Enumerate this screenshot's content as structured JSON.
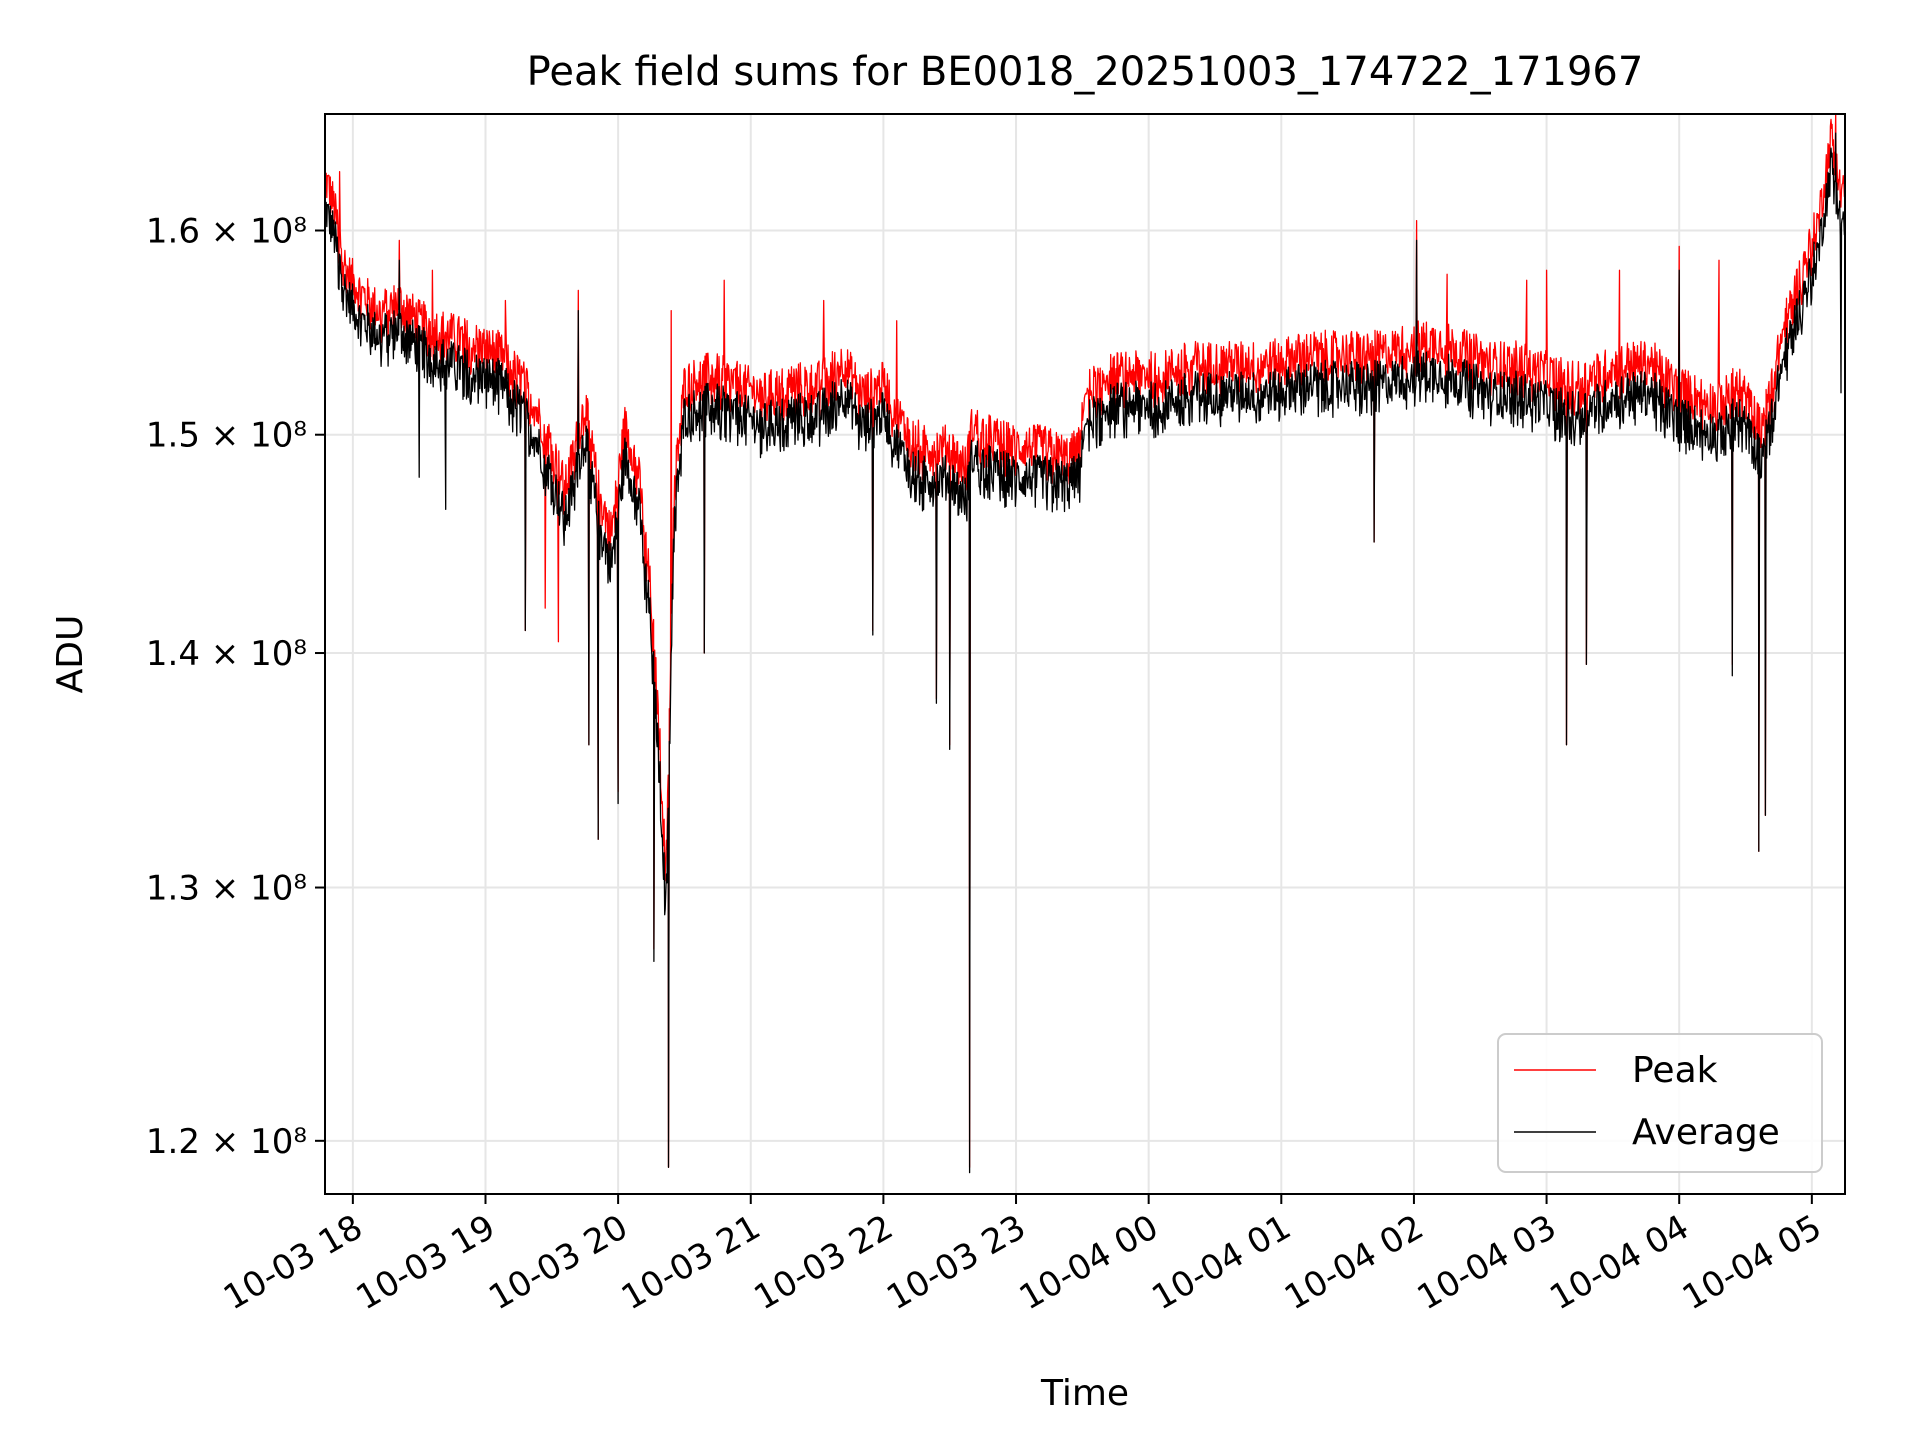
{
  "chart_data": {
    "type": "line",
    "title": "Peak field sums for BE0018_20251003_174722_171967",
    "xlabel": "Time",
    "ylabel": "ADU",
    "x_units": "hours since 2025-10-03 17:00",
    "xlim": [
      0.79,
      12.25
    ],
    "ylim": [
      118000000.0,
      166000000.0
    ],
    "y_scale": "log",
    "grid": true,
    "legend_position": "lower-right",
    "x_ticks": [
      {
        "value": 1,
        "label": "10-03 18"
      },
      {
        "value": 2,
        "label": "10-03 19"
      },
      {
        "value": 3,
        "label": "10-03 20"
      },
      {
        "value": 4,
        "label": "10-03 21"
      },
      {
        "value": 5,
        "label": "10-03 22"
      },
      {
        "value": 6,
        "label": "10-03 23"
      },
      {
        "value": 7,
        "label": "10-04 00"
      },
      {
        "value": 8,
        "label": "10-04 01"
      },
      {
        "value": 9,
        "label": "10-04 02"
      },
      {
        "value": 10,
        "label": "10-04 03"
      },
      {
        "value": 11,
        "label": "10-04 04"
      },
      {
        "value": 12,
        "label": "10-04 05"
      }
    ],
    "y_ticks": [
      {
        "value": 120000000.0,
        "label": "1.2 × 10⁸"
      },
      {
        "value": 130000000.0,
        "label": "1.3 × 10⁸"
      },
      {
        "value": 140000000.0,
        "label": "1.4 × 10⁸"
      },
      {
        "value": 150000000.0,
        "label": "1.5 × 10⁸"
      },
      {
        "value": 160000000.0,
        "label": "1.6 × 10⁸"
      }
    ],
    "series": [
      {
        "name": "Peak",
        "color": "#ff0000",
        "points": [
          [
            0.79,
            162200000.0
          ],
          [
            0.85,
            161000000.0
          ],
          [
            0.95,
            157500000.0
          ],
          [
            1.05,
            156500000.0
          ],
          [
            1.2,
            155500000.0
          ],
          [
            1.35,
            156000000.0
          ],
          [
            1.5,
            155000000.0
          ],
          [
            1.7,
            154500000.0
          ],
          [
            1.9,
            154000000.0
          ],
          [
            2.1,
            153500000.0
          ],
          [
            2.3,
            152000000.0
          ],
          [
            2.5,
            149000000.0
          ],
          [
            2.6,
            147000000.0
          ],
          [
            2.75,
            151000000.0
          ],
          [
            2.85,
            147000000.0
          ],
          [
            2.95,
            145000000.0
          ],
          [
            3.05,
            150000000.0
          ],
          [
            3.15,
            148000000.0
          ],
          [
            3.25,
            142000000.0
          ],
          [
            3.32,
            135000000.0
          ],
          [
            3.36,
            130000000.0
          ],
          [
            3.42,
            147000000.0
          ],
          [
            3.5,
            152000000.0
          ],
          [
            3.7,
            152500000.0
          ],
          [
            3.9,
            152000000.0
          ],
          [
            4.1,
            151500000.0
          ],
          [
            4.3,
            152000000.0
          ],
          [
            4.5,
            152000000.0
          ],
          [
            4.7,
            153000000.0
          ],
          [
            4.85,
            151500000.0
          ],
          [
            5.0,
            152000000.0
          ],
          [
            5.15,
            150000000.0
          ],
          [
            5.3,
            149000000.0
          ],
          [
            5.5,
            149000000.0
          ],
          [
            5.62,
            148000000.0
          ],
          [
            5.67,
            150000000.0
          ],
          [
            5.8,
            149500000.0
          ],
          [
            6.0,
            149000000.0
          ],
          [
            6.2,
            149000000.0
          ],
          [
            6.4,
            148500000.0
          ],
          [
            6.48,
            149000000.0
          ],
          [
            6.52,
            151500000.0
          ],
          [
            6.7,
            152500000.0
          ],
          [
            6.9,
            152500000.0
          ],
          [
            7.1,
            152500000.0
          ],
          [
            7.3,
            153000000.0
          ],
          [
            7.6,
            153000000.0
          ],
          [
            7.9,
            153000000.0
          ],
          [
            8.2,
            153500000.0
          ],
          [
            8.5,
            153500000.0
          ],
          [
            8.8,
            153500000.0
          ],
          [
            9.0,
            154000000.0
          ],
          [
            9.2,
            154000000.0
          ],
          [
            9.4,
            153500000.0
          ],
          [
            9.6,
            153000000.0
          ],
          [
            9.8,
            153000000.0
          ],
          [
            10.0,
            152500000.0
          ],
          [
            10.2,
            152000000.0
          ],
          [
            10.4,
            152500000.0
          ],
          [
            10.6,
            153000000.0
          ],
          [
            10.8,
            153000000.0
          ],
          [
            10.95,
            152000000.0
          ],
          [
            11.1,
            151500000.0
          ],
          [
            11.3,
            151000000.0
          ],
          [
            11.45,
            152000000.0
          ],
          [
            11.6,
            150000000.0
          ],
          [
            11.7,
            152000000.0
          ],
          [
            11.8,
            155000000.0
          ],
          [
            11.95,
            158000000.0
          ],
          [
            12.05,
            160000000.0
          ],
          [
            12.15,
            164500000.0
          ],
          [
            12.2,
            163000000.0
          ],
          [
            12.25,
            161500000.0
          ]
        ],
        "spikes_high": [
          [
            0.82,
            162800000.0
          ],
          [
            0.9,
            163000000.0
          ],
          [
            1.35,
            159500000.0
          ],
          [
            1.6,
            158000000.0
          ],
          [
            2.15,
            156500000.0
          ],
          [
            2.7,
            157000000.0
          ],
          [
            3.4,
            156000000.0
          ],
          [
            3.8,
            157500000.0
          ],
          [
            4.55,
            156500000.0
          ],
          [
            5.1,
            155500000.0
          ],
          [
            9.02,
            160500000.0
          ],
          [
            9.25,
            157800000.0
          ],
          [
            9.85,
            157500000.0
          ],
          [
            10.0,
            158000000.0
          ],
          [
            10.55,
            158000000.0
          ],
          [
            11.0,
            159200000.0
          ],
          [
            11.3,
            158500000.0
          ],
          [
            12.18,
            166200000.0
          ]
        ],
        "spikes_low": [
          [
            2.3,
            141000000.0
          ],
          [
            2.45,
            142000000.0
          ],
          [
            2.55,
            140500000.0
          ],
          [
            2.78,
            136000000.0
          ],
          [
            2.85,
            132000000.0
          ],
          [
            3.0,
            134000000.0
          ],
          [
            3.27,
            127500000.0
          ],
          [
            3.38,
            119000000.0
          ],
          [
            3.65,
            140000000.0
          ],
          [
            4.92,
            141000000.0
          ],
          [
            5.4,
            138000000.0
          ],
          [
            5.5,
            136000000.0
          ],
          [
            5.65,
            119000000.0
          ],
          [
            8.7,
            145000000.0
          ],
          [
            10.15,
            136000000.0
          ],
          [
            10.3,
            139500000.0
          ],
          [
            11.4,
            139500000.0
          ],
          [
            11.6,
            131500000.0
          ],
          [
            11.65,
            133000000.0
          ]
        ]
      },
      {
        "name": "Average",
        "color": "#000000",
        "points": [
          [
            0.79,
            161200000.0
          ],
          [
            0.85,
            160000000.0
          ],
          [
            0.95,
            156800000.0
          ],
          [
            1.05,
            155600000.0
          ],
          [
            1.2,
            154800000.0
          ],
          [
            1.35,
            155200000.0
          ],
          [
            1.5,
            154200000.0
          ],
          [
            1.7,
            153600000.0
          ],
          [
            1.9,
            153000000.0
          ],
          [
            2.1,
            152600000.0
          ],
          [
            2.3,
            151000000.0
          ],
          [
            2.5,
            148000000.0
          ],
          [
            2.6,
            146000000.0
          ],
          [
            2.75,
            150000000.0
          ],
          [
            2.85,
            146000000.0
          ],
          [
            2.95,
            144000000.0
          ],
          [
            3.05,
            149000000.0
          ],
          [
            3.15,
            147000000.0
          ],
          [
            3.25,
            141000000.0
          ],
          [
            3.32,
            134000000.0
          ],
          [
            3.36,
            129000000.0
          ],
          [
            3.42,
            146000000.0
          ],
          [
            3.5,
            151000000.0
          ],
          [
            3.7,
            151500000.0
          ],
          [
            3.9,
            151000000.0
          ],
          [
            4.1,
            150500000.0
          ],
          [
            4.3,
            151000000.0
          ],
          [
            4.5,
            151000000.0
          ],
          [
            4.7,
            152000000.0
          ],
          [
            4.85,
            150500000.0
          ],
          [
            5.0,
            151000000.0
          ],
          [
            5.15,
            149000000.0
          ],
          [
            5.3,
            148000000.0
          ],
          [
            5.5,
            148000000.0
          ],
          [
            5.62,
            147000000.0
          ],
          [
            5.67,
            149000000.0
          ],
          [
            5.8,
            148500000.0
          ],
          [
            6.0,
            148000000.0
          ],
          [
            6.2,
            148000000.0
          ],
          [
            6.4,
            147800000.0
          ],
          [
            6.48,
            148200000.0
          ],
          [
            6.52,
            150500000.0
          ],
          [
            6.7,
            151500000.0
          ],
          [
            6.9,
            151500000.0
          ],
          [
            7.1,
            151500000.0
          ],
          [
            7.3,
            152000000.0
          ],
          [
            7.6,
            152000000.0
          ],
          [
            7.9,
            152000000.0
          ],
          [
            8.2,
            152500000.0
          ],
          [
            8.5,
            152500000.0
          ],
          [
            8.8,
            152500000.0
          ],
          [
            9.0,
            153000000.0
          ],
          [
            9.2,
            153000000.0
          ],
          [
            9.4,
            152500000.0
          ],
          [
            9.6,
            152000000.0
          ],
          [
            9.8,
            152000000.0
          ],
          [
            10.0,
            151500000.0
          ],
          [
            10.2,
            151000000.0
          ],
          [
            10.4,
            151500000.0
          ],
          [
            10.6,
            152000000.0
          ],
          [
            10.8,
            152000000.0
          ],
          [
            10.95,
            151000000.0
          ],
          [
            11.1,
            150500000.0
          ],
          [
            11.3,
            150000000.0
          ],
          [
            11.45,
            151000000.0
          ],
          [
            11.6,
            149000000.0
          ],
          [
            11.7,
            151000000.0
          ],
          [
            11.8,
            154000000.0
          ],
          [
            11.95,
            157000000.0
          ],
          [
            12.05,
            159000000.0
          ],
          [
            12.15,
            163500000.0
          ],
          [
            12.2,
            162000000.0
          ],
          [
            12.25,
            160000000.0
          ]
        ],
        "spikes_high": [
          [
            1.35,
            158500000.0
          ],
          [
            2.7,
            156000000.0
          ],
          [
            9.02,
            159500000.0
          ],
          [
            11.0,
            158000000.0
          ],
          [
            12.18,
            165000000.0
          ]
        ],
        "spikes_low": [
          [
            1.5,
            148000000.0
          ],
          [
            1.7,
            146500000.0
          ],
          [
            2.3,
            141000000.0
          ],
          [
            2.78,
            136000000.0
          ],
          [
            2.85,
            132000000.0
          ],
          [
            3.0,
            133500000.0
          ],
          [
            3.27,
            127000000.0
          ],
          [
            3.38,
            119000000.0
          ],
          [
            3.65,
            140000000.0
          ],
          [
            4.92,
            140800000.0
          ],
          [
            5.4,
            137800000.0
          ],
          [
            5.5,
            135800000.0
          ],
          [
            5.65,
            118800000.0
          ],
          [
            8.7,
            145000000.0
          ],
          [
            10.15,
            136000000.0
          ],
          [
            10.3,
            139500000.0
          ],
          [
            11.4,
            139000000.0
          ],
          [
            11.6,
            131500000.0
          ],
          [
            11.65,
            133000000.0
          ],
          [
            12.22,
            152000000.0
          ]
        ]
      }
    ]
  }
}
